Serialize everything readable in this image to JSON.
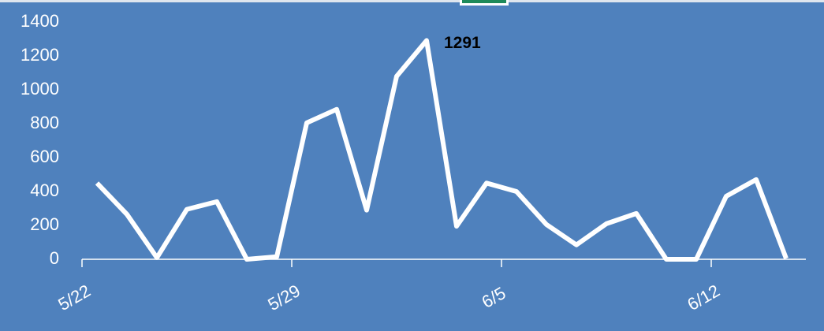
{
  "chart_data": {
    "type": "line",
    "categories": [
      "5/22",
      null,
      null,
      null,
      null,
      null,
      null,
      "5/29",
      null,
      null,
      null,
      null,
      null,
      null,
      "6/5",
      null,
      null,
      null,
      null,
      null,
      null,
      "6/12",
      null,
      null
    ],
    "values": [
      450,
      265,
      10,
      295,
      340,
      0,
      15,
      805,
      885,
      290,
      1080,
      1291,
      195,
      450,
      400,
      205,
      85,
      210,
      270,
      0,
      0,
      372,
      470,
      5
    ],
    "color": "#ffffff",
    "ylim": [
      0,
      1400
    ],
    "yticks": [
      0,
      200,
      400,
      600,
      800,
      1000,
      1200,
      1400
    ],
    "labeled_point": 11
  }
}
